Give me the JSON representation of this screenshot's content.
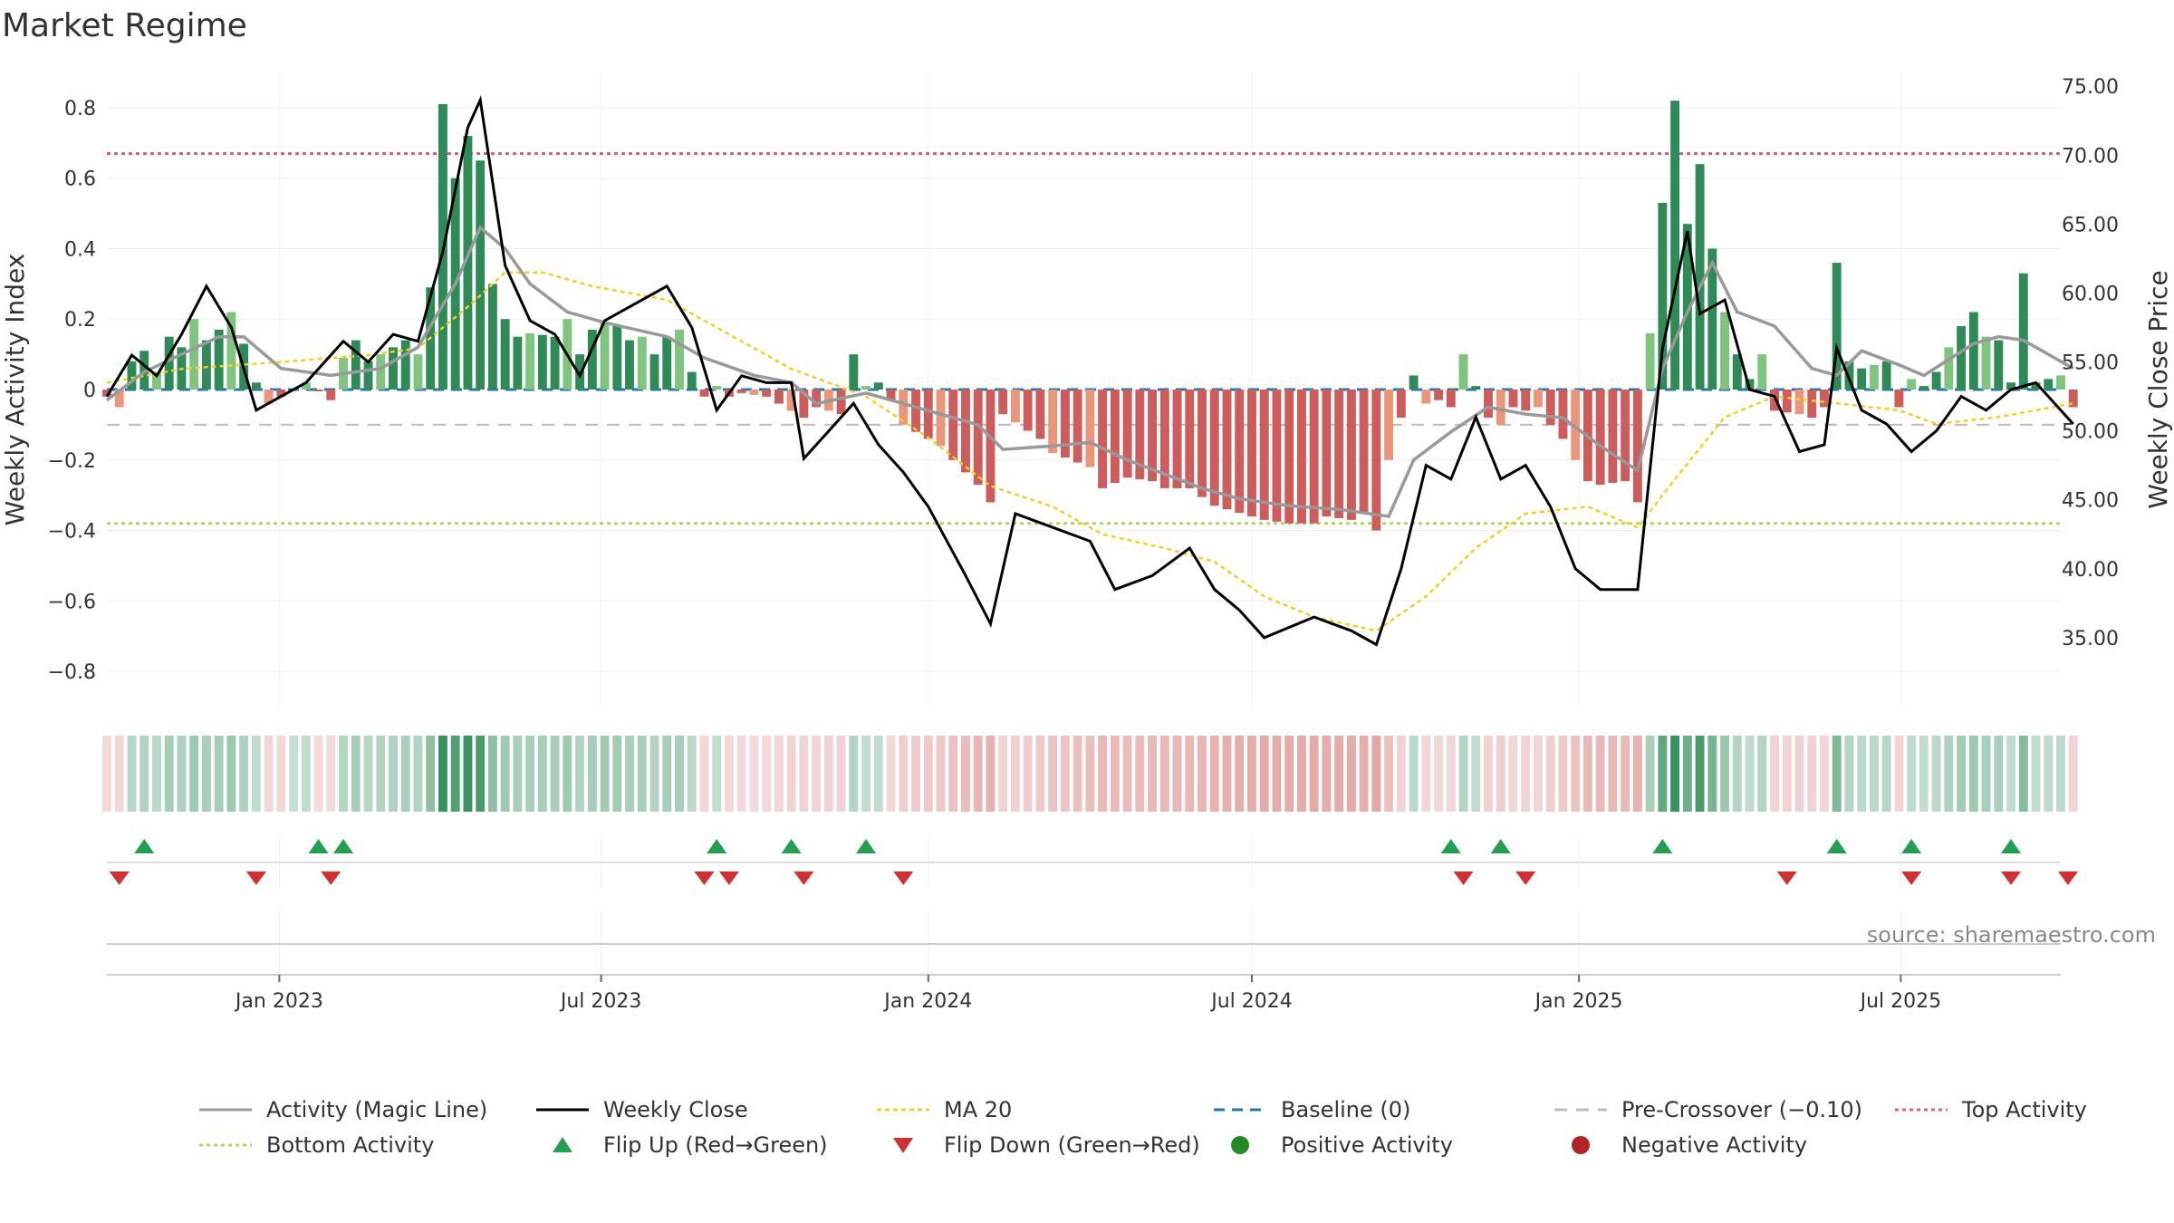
{
  "chart_data": {
    "type": "bar",
    "title": "Market Regime",
    "source": "source: sharemaestro.com",
    "y_left": {
      "label": "Weekly Activity Index",
      "range": [
        -0.9,
        0.9
      ],
      "ticks": [
        0.8,
        0.6,
        0.4,
        0.2,
        0,
        -0.2,
        -0.4,
        -0.6,
        -0.8
      ],
      "tick_labels": [
        "0.8",
        "0.6",
        "0.4",
        "0.2",
        "0",
        "−0.2",
        "−0.4",
        "−0.6",
        "−0.8"
      ]
    },
    "y_right": {
      "label": "Weekly Close Price",
      "range": [
        30,
        76
      ],
      "ticks": [
        75,
        70,
        65,
        60,
        55,
        50,
        45,
        40,
        35
      ],
      "tick_labels": [
        "75.00",
        "70.00",
        "65.00",
        "60.00",
        "55.00",
        "50.00",
        "45.00",
        "40.00",
        "35.00"
      ]
    },
    "x_axis": {
      "start": "2022-09-26",
      "end": "2025-09-29",
      "ticks": [
        "2023-01-01",
        "2023-07-01",
        "2024-01-01",
        "2024-07-01",
        "2025-01-01",
        "2025-07-01"
      ],
      "tick_labels": [
        "Jan 2023",
        "Jul 2023",
        "Jan 2024",
        "Jul 2024",
        "Jan 2025",
        "Jul 2025"
      ],
      "grid": true
    },
    "reference_lines": {
      "top_activity": 0.67,
      "bottom_activity": -0.38,
      "baseline": 0,
      "pre_crossover": -0.1
    },
    "colors": {
      "strong_green": "#2e8b57",
      "light_green": "#7fc47f",
      "strong_red": "#cd5c5c",
      "light_red": "#e9967a",
      "activity_line": "#999999",
      "close_line": "#000000",
      "ma_line": "#f0d020",
      "baseline": "#1f77b4",
      "pre_crossover": "#bbbbbb",
      "top_activity": "#e06070",
      "bottom_activity": "#a8d86a",
      "flip_up": "#22a050",
      "flip_down": "#d03030",
      "positive": "#228b22",
      "negative": "#b22222"
    },
    "flip_up_dates": [
      "2022-10-17",
      "2023-01-23",
      "2023-02-06",
      "2023-09-04",
      "2023-10-16",
      "2023-11-27",
      "2024-10-21",
      "2024-11-18",
      "2025-02-17",
      "2025-05-26",
      "2025-07-07",
      "2025-09-01"
    ],
    "flip_down_dates": [
      "2022-10-03",
      "2022-12-19",
      "2023-01-30",
      "2023-08-28",
      "2023-09-11",
      "2023-10-23",
      "2023-12-18",
      "2024-10-28",
      "2024-12-02",
      "2025-04-28",
      "2025-07-07",
      "2025-09-01",
      "2025-10-06"
    ],
    "legend": [
      {
        "label": "Activity (Magic Line)",
        "kind": "line",
        "color": "#999999",
        "dash": ""
      },
      {
        "label": "Weekly Close",
        "kind": "line",
        "color": "#000000",
        "dash": ""
      },
      {
        "label": "MA 20",
        "kind": "line",
        "color": "#f0d020",
        "dash": "5,4"
      },
      {
        "label": "Baseline (0)",
        "kind": "line",
        "color": "#1f77b4",
        "dash": "12,8"
      },
      {
        "label": "Pre-Crossover (−0.10)",
        "kind": "line",
        "color": "#bbbbbb",
        "dash": "14,10"
      },
      {
        "label": "Top Activity",
        "kind": "line",
        "color": "#e06070",
        "dash": "4,4"
      },
      {
        "label": "Bottom Activity",
        "kind": "line",
        "color": "#a8d86a",
        "dash": "4,4"
      },
      {
        "label": "Flip Up (Red→Green)",
        "kind": "tri-up",
        "color": "#22a050",
        "dash": ""
      },
      {
        "label": "Flip Down (Green→Red)",
        "kind": "tri-down",
        "color": "#d03030",
        "dash": ""
      },
      {
        "label": "Positive Activity",
        "kind": "dot",
        "color": "#228b22",
        "dash": ""
      },
      {
        "label": "Negative Activity",
        "kind": "dot",
        "color": "#b22222",
        "dash": ""
      }
    ],
    "activity_keypoints": [
      [
        "2022-09-26",
        -0.02
      ],
      [
        "2022-10-03",
        -0.05
      ],
      [
        "2022-10-10",
        0.08
      ],
      [
        "2022-10-17",
        0.11
      ],
      [
        "2022-10-24",
        0.05
      ],
      [
        "2022-10-31",
        0.15
      ],
      [
        "2022-11-07",
        0.12
      ],
      [
        "2022-11-14",
        0.2
      ],
      [
        "2022-11-21",
        0.14
      ],
      [
        "2022-11-28",
        0.17
      ],
      [
        "2022-12-05",
        0.22
      ],
      [
        "2022-12-12",
        0.13
      ],
      [
        "2022-12-19",
        0.02
      ],
      [
        "2022-12-26",
        -0.04
      ],
      [
        "2023-01-02",
        -0.02
      ],
      [
        "2023-01-16",
        0.02
      ],
      [
        "2023-01-30",
        -0.03
      ],
      [
        "2023-02-06",
        0.09
      ],
      [
        "2023-02-13",
        0.14
      ],
      [
        "2023-02-20",
        0.08
      ],
      [
        "2023-03-06",
        0.12
      ],
      [
        "2023-03-13",
        0.14
      ],
      [
        "2023-03-20",
        0.1
      ],
      [
        "2023-03-27",
        0.29
      ],
      [
        "2023-04-03",
        0.81
      ],
      [
        "2023-04-10",
        0.6
      ],
      [
        "2023-04-17",
        0.72
      ],
      [
        "2023-04-24",
        0.65
      ],
      [
        "2023-05-01",
        0.3
      ],
      [
        "2023-05-08",
        0.2
      ],
      [
        "2023-05-15",
        0.15
      ],
      [
        "2023-05-22",
        0.16
      ],
      [
        "2023-06-05",
        0.15
      ],
      [
        "2023-06-12",
        0.2
      ],
      [
        "2023-06-19",
        0.1
      ],
      [
        "2023-06-26",
        0.17
      ],
      [
        "2023-07-03",
        0.19
      ],
      [
        "2023-07-10",
        0.18
      ],
      [
        "2023-07-17",
        0.14
      ],
      [
        "2023-07-24",
        0.15
      ],
      [
        "2023-07-31",
        0.1
      ],
      [
        "2023-08-07",
        0.15
      ],
      [
        "2023-08-14",
        0.17
      ],
      [
        "2023-08-21",
        0.05
      ],
      [
        "2023-08-28",
        -0.02
      ],
      [
        "2023-09-04",
        0.01
      ],
      [
        "2023-09-11",
        -0.02
      ],
      [
        "2023-09-18",
        -0.01
      ],
      [
        "2023-10-02",
        -0.02
      ],
      [
        "2023-10-09",
        -0.04
      ],
      [
        "2023-10-16",
        -0.06
      ],
      [
        "2023-10-23",
        -0.08
      ],
      [
        "2023-10-30",
        -0.05
      ],
      [
        "2023-11-06",
        -0.06
      ],
      [
        "2023-11-13",
        -0.07
      ],
      [
        "2023-11-20",
        0.1
      ],
      [
        "2023-11-27",
        0.01
      ],
      [
        "2023-12-04",
        0.02
      ],
      [
        "2023-12-11",
        -0.03
      ],
      [
        "2023-12-18",
        -0.1
      ],
      [
        "2023-12-25",
        -0.12
      ],
      [
        "2024-01-08",
        -0.16
      ],
      [
        "2024-01-15",
        -0.2
      ],
      [
        "2024-01-29",
        -0.27
      ],
      [
        "2024-02-05",
        -0.32
      ],
      [
        "2024-02-12",
        -0.07
      ],
      [
        "2024-03-04",
        -0.14
      ],
      [
        "2024-03-11",
        -0.18
      ],
      [
        "2024-04-01",
        -0.22
      ],
      [
        "2024-04-08",
        -0.28
      ],
      [
        "2024-04-22",
        -0.25
      ],
      [
        "2024-05-06",
        -0.26
      ],
      [
        "2024-05-13",
        -0.28
      ],
      [
        "2024-05-27",
        -0.28
      ],
      [
        "2024-06-10",
        -0.33
      ],
      [
        "2024-06-24",
        -0.35
      ],
      [
        "2024-07-08",
        -0.37
      ],
      [
        "2024-07-22",
        -0.38
      ],
      [
        "2024-08-05",
        -0.38
      ],
      [
        "2024-08-12",
        -0.36
      ],
      [
        "2024-08-26",
        -0.37
      ],
      [
        "2024-09-02",
        -0.35
      ],
      [
        "2024-09-09",
        -0.4
      ],
      [
        "2024-09-16",
        -0.2
      ],
      [
        "2024-09-23",
        -0.08
      ],
      [
        "2024-09-30",
        0.04
      ],
      [
        "2024-10-07",
        -0.04
      ],
      [
        "2024-10-14",
        -0.03
      ],
      [
        "2024-10-21",
        -0.05
      ],
      [
        "2024-10-28",
        0.1
      ],
      [
        "2024-11-04",
        0.01
      ],
      [
        "2024-11-11",
        -0.08
      ],
      [
        "2024-11-18",
        -0.1
      ],
      [
        "2024-11-25",
        -0.05
      ],
      [
        "2024-12-02",
        -0.06
      ],
      [
        "2024-12-09",
        -0.05
      ],
      [
        "2024-12-16",
        -0.1
      ],
      [
        "2024-12-23",
        -0.14
      ],
      [
        "2025-01-06",
        -0.26
      ],
      [
        "2025-01-13",
        -0.27
      ],
      [
        "2025-01-27",
        -0.26
      ],
      [
        "2025-02-03",
        -0.32
      ],
      [
        "2025-02-10",
        0.16
      ],
      [
        "2025-02-17",
        0.53
      ],
      [
        "2025-02-24",
        0.82
      ],
      [
        "2025-03-03",
        0.47
      ],
      [
        "2025-03-10",
        0.64
      ],
      [
        "2025-03-17",
        0.4
      ],
      [
        "2025-03-24",
        0.22
      ],
      [
        "2025-03-31",
        0.1
      ],
      [
        "2025-04-07",
        0.03
      ],
      [
        "2025-04-14",
        0.1
      ],
      [
        "2025-04-21",
        -0.06
      ],
      [
        "2025-05-05",
        -0.07
      ],
      [
        "2025-05-12",
        -0.08
      ],
      [
        "2025-05-19",
        -0.05
      ],
      [
        "2025-05-26",
        0.36
      ],
      [
        "2025-06-02",
        0.08
      ],
      [
        "2025-06-09",
        0.06
      ],
      [
        "2025-06-23",
        0.08
      ],
      [
        "2025-06-30",
        -0.05
      ],
      [
        "2025-07-07",
        0.03
      ],
      [
        "2025-07-14",
        0.01
      ],
      [
        "2025-07-21",
        0.05
      ],
      [
        "2025-07-28",
        0.12
      ],
      [
        "2025-08-04",
        0.18
      ],
      [
        "2025-08-11",
        0.22
      ],
      [
        "2025-08-18",
        0.15
      ],
      [
        "2025-08-25",
        0.14
      ],
      [
        "2025-09-01",
        0.02
      ],
      [
        "2025-09-08",
        0.33
      ],
      [
        "2025-09-15",
        0.02
      ],
      [
        "2025-09-22",
        0.03
      ],
      [
        "2025-09-29",
        0.04
      ],
      [
        "2025-10-06",
        -0.05
      ]
    ],
    "magic_line_keypoints": [
      [
        "2022-09-26",
        -0.03
      ],
      [
        "2022-10-17",
        0.05
      ],
      [
        "2022-11-07",
        0.1
      ],
      [
        "2022-11-28",
        0.15
      ],
      [
        "2022-12-12",
        0.15
      ],
      [
        "2023-01-02",
        0.06
      ],
      [
        "2023-01-30",
        0.04
      ],
      [
        "2023-02-27",
        0.06
      ],
      [
        "2023-03-20",
        0.12
      ],
      [
        "2023-04-10",
        0.3
      ],
      [
        "2023-04-24",
        0.46
      ],
      [
        "2023-05-08",
        0.4
      ],
      [
        "2023-05-22",
        0.3
      ],
      [
        "2023-06-12",
        0.22
      ],
      [
        "2023-07-03",
        0.19
      ],
      [
        "2023-08-07",
        0.15
      ],
      [
        "2023-08-28",
        0.09
      ],
      [
        "2023-09-25",
        0.04
      ],
      [
        "2023-10-16",
        0.02
      ],
      [
        "2023-10-30",
        -0.04
      ],
      [
        "2023-11-27",
        -0.01
      ],
      [
        "2024-01-01",
        -0.06
      ],
      [
        "2024-01-29",
        -0.1
      ],
      [
        "2024-02-12",
        -0.17
      ],
      [
        "2024-03-11",
        -0.16
      ],
      [
        "2024-04-01",
        -0.15
      ],
      [
        "2024-04-22",
        -0.2
      ],
      [
        "2024-05-13",
        -0.24
      ],
      [
        "2024-06-03",
        -0.28
      ],
      [
        "2024-06-24",
        -0.31
      ],
      [
        "2024-07-22",
        -0.33
      ],
      [
        "2024-08-19",
        -0.34
      ],
      [
        "2024-09-02",
        -0.35
      ],
      [
        "2024-09-16",
        -0.36
      ],
      [
        "2024-09-30",
        -0.2
      ],
      [
        "2024-10-21",
        -0.12
      ],
      [
        "2024-11-11",
        -0.05
      ],
      [
        "2024-12-02",
        -0.07
      ],
      [
        "2024-12-23",
        -0.08
      ],
      [
        "2025-01-13",
        -0.16
      ],
      [
        "2025-02-03",
        -0.23
      ],
      [
        "2025-02-17",
        0.06
      ],
      [
        "2025-03-03",
        0.22
      ],
      [
        "2025-03-17",
        0.36
      ],
      [
        "2025-03-31",
        0.22
      ],
      [
        "2025-04-21",
        0.18
      ],
      [
        "2025-05-12",
        0.06
      ],
      [
        "2025-05-26",
        0.04
      ],
      [
        "2025-06-09",
        0.11
      ],
      [
        "2025-06-30",
        0.07
      ],
      [
        "2025-07-14",
        0.04
      ],
      [
        "2025-08-11",
        0.13
      ],
      [
        "2025-08-25",
        0.15
      ],
      [
        "2025-09-08",
        0.14
      ],
      [
        "2025-10-06",
        0.06
      ]
    ],
    "close_keypoints": [
      [
        "2022-09-26",
        52.5
      ],
      [
        "2022-10-10",
        55.5
      ],
      [
        "2022-10-24",
        54.0
      ],
      [
        "2022-11-07",
        57.0
      ],
      [
        "2022-11-21",
        60.5
      ],
      [
        "2022-12-05",
        57.5
      ],
      [
        "2022-12-19",
        51.5
      ],
      [
        "2023-01-02",
        52.5
      ],
      [
        "2023-01-16",
        53.5
      ],
      [
        "2023-02-06",
        56.5
      ],
      [
        "2023-02-20",
        55.0
      ],
      [
        "2023-03-06",
        57.0
      ],
      [
        "2023-03-20",
        56.5
      ],
      [
        "2023-04-03",
        63.0
      ],
      [
        "2023-04-17",
        72.0
      ],
      [
        "2023-04-24",
        74.0
      ],
      [
        "2023-05-08",
        62.0
      ],
      [
        "2023-05-22",
        58.0
      ],
      [
        "2023-06-05",
        57.0
      ],
      [
        "2023-06-19",
        54.0
      ],
      [
        "2023-07-03",
        58.0
      ],
      [
        "2023-07-17",
        59.0
      ],
      [
        "2023-08-07",
        60.5
      ],
      [
        "2023-08-21",
        57.5
      ],
      [
        "2023-09-04",
        51.5
      ],
      [
        "2023-09-18",
        54.0
      ],
      [
        "2023-10-02",
        53.5
      ],
      [
        "2023-10-16",
        53.5
      ],
      [
        "2023-10-23",
        48.0
      ],
      [
        "2023-11-06",
        50.0
      ],
      [
        "2023-11-20",
        52.0
      ],
      [
        "2023-12-04",
        49.0
      ],
      [
        "2023-12-18",
        47.0
      ],
      [
        "2024-01-01",
        44.5
      ],
      [
        "2024-01-22",
        39.5
      ],
      [
        "2024-02-05",
        36.0
      ],
      [
        "2024-02-19",
        44.0
      ],
      [
        "2024-03-11",
        43.0
      ],
      [
        "2024-04-01",
        42.0
      ],
      [
        "2024-04-15",
        38.5
      ],
      [
        "2024-05-06",
        39.5
      ],
      [
        "2024-05-27",
        41.5
      ],
      [
        "2024-06-10",
        38.5
      ],
      [
        "2024-06-24",
        37.0
      ],
      [
        "2024-07-08",
        35.0
      ],
      [
        "2024-08-05",
        36.5
      ],
      [
        "2024-08-26",
        35.5
      ],
      [
        "2024-09-09",
        34.5
      ],
      [
        "2024-09-23",
        40.0
      ],
      [
        "2024-10-07",
        47.5
      ],
      [
        "2024-10-21",
        46.5
      ],
      [
        "2024-11-04",
        51.0
      ],
      [
        "2024-11-18",
        46.5
      ],
      [
        "2024-12-02",
        47.5
      ],
      [
        "2024-12-16",
        44.5
      ],
      [
        "2024-12-30",
        40.0
      ],
      [
        "2025-01-13",
        38.5
      ],
      [
        "2025-02-03",
        38.5
      ],
      [
        "2025-02-17",
        56.0
      ],
      [
        "2025-03-03",
        64.5
      ],
      [
        "2025-03-10",
        58.5
      ],
      [
        "2025-03-24",
        59.5
      ],
      [
        "2025-04-07",
        53.0
      ],
      [
        "2025-04-21",
        52.5
      ],
      [
        "2025-05-05",
        48.5
      ],
      [
        "2025-05-19",
        49.0
      ],
      [
        "2025-05-26",
        56.0
      ],
      [
        "2025-06-09",
        51.5
      ],
      [
        "2025-06-23",
        50.5
      ],
      [
        "2025-07-07",
        48.5
      ],
      [
        "2025-07-21",
        50.0
      ],
      [
        "2025-08-04",
        52.5
      ],
      [
        "2025-08-18",
        51.5
      ],
      [
        "2025-09-01",
        53.0
      ],
      [
        "2025-09-15",
        53.5
      ],
      [
        "2025-10-06",
        50.5
      ]
    ],
    "ma20_keypoints": [
      [
        "2022-09-26",
        53.5
      ],
      [
        "2022-11-07",
        54.5
      ],
      [
        "2023-01-02",
        55.0
      ],
      [
        "2023-02-20",
        55.5
      ],
      [
        "2023-03-20",
        56.0
      ],
      [
        "2023-04-17",
        59.0
      ],
      [
        "2023-05-08",
        61.5
      ],
      [
        "2023-05-29",
        61.5
      ],
      [
        "2023-06-26",
        60.5
      ],
      [
        "2023-08-07",
        59.5
      ],
      [
        "2023-09-04",
        57.5
      ],
      [
        "2023-10-16",
        54.5
      ],
      [
        "2023-11-27",
        52.5
      ],
      [
        "2024-01-01",
        49.5
      ],
      [
        "2024-02-05",
        46.0
      ],
      [
        "2024-03-11",
        44.5
      ],
      [
        "2024-04-08",
        42.5
      ],
      [
        "2024-05-13",
        41.5
      ],
      [
        "2024-06-10",
        40.5
      ],
      [
        "2024-07-08",
        38.0
      ],
      [
        "2024-08-05",
        36.5
      ],
      [
        "2024-09-09",
        35.5
      ],
      [
        "2024-10-07",
        38.0
      ],
      [
        "2024-11-04",
        41.5
      ],
      [
        "2024-12-02",
        44.0
      ],
      [
        "2025-01-06",
        44.5
      ],
      [
        "2025-02-03",
        43.0
      ],
      [
        "2025-02-24",
        46.5
      ],
      [
        "2025-03-24",
        51.0
      ],
      [
        "2025-04-21",
        52.5
      ],
      [
        "2025-05-26",
        52.0
      ],
      [
        "2025-06-30",
        51.5
      ],
      [
        "2025-07-21",
        50.5
      ],
      [
        "2025-08-25",
        51.0
      ],
      [
        "2025-10-06",
        52.0
      ]
    ]
  }
}
